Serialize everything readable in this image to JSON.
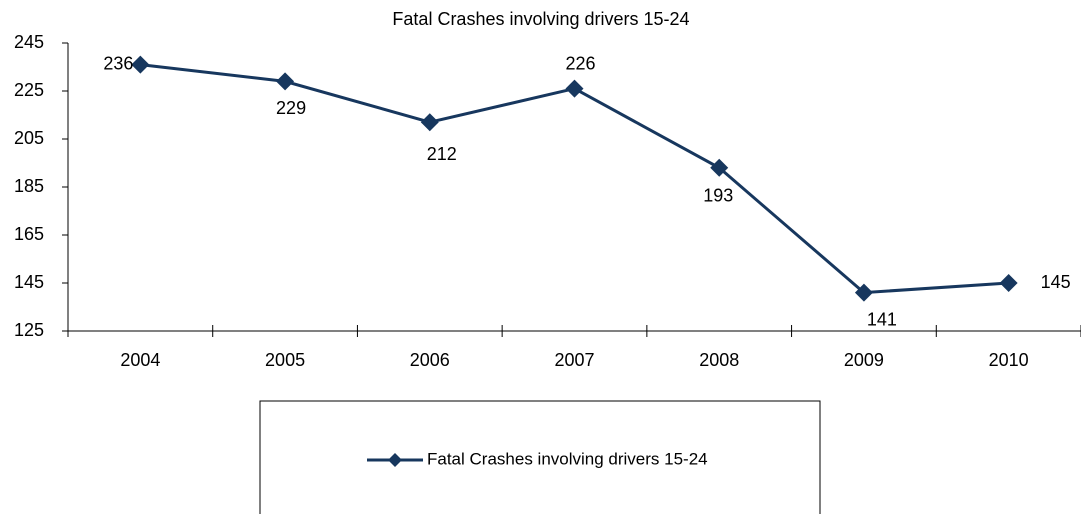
{
  "chart_data": {
    "type": "line",
    "title": "Fatal Crashes involving drivers 15-24",
    "categories": [
      "2004",
      "2005",
      "2006",
      "2007",
      "2008",
      "2009",
      "2010"
    ],
    "series": [
      {
        "name": "Fatal Crashes involving drivers 15-24",
        "color": "#17375e",
        "values": [
          236,
          229,
          212,
          226,
          193,
          141,
          145
        ]
      }
    ],
    "ylim": [
      125,
      245
    ],
    "yticks": [
      125,
      145,
      165,
      185,
      205,
      225,
      245
    ],
    "grid": false,
    "legend": "bottom"
  }
}
